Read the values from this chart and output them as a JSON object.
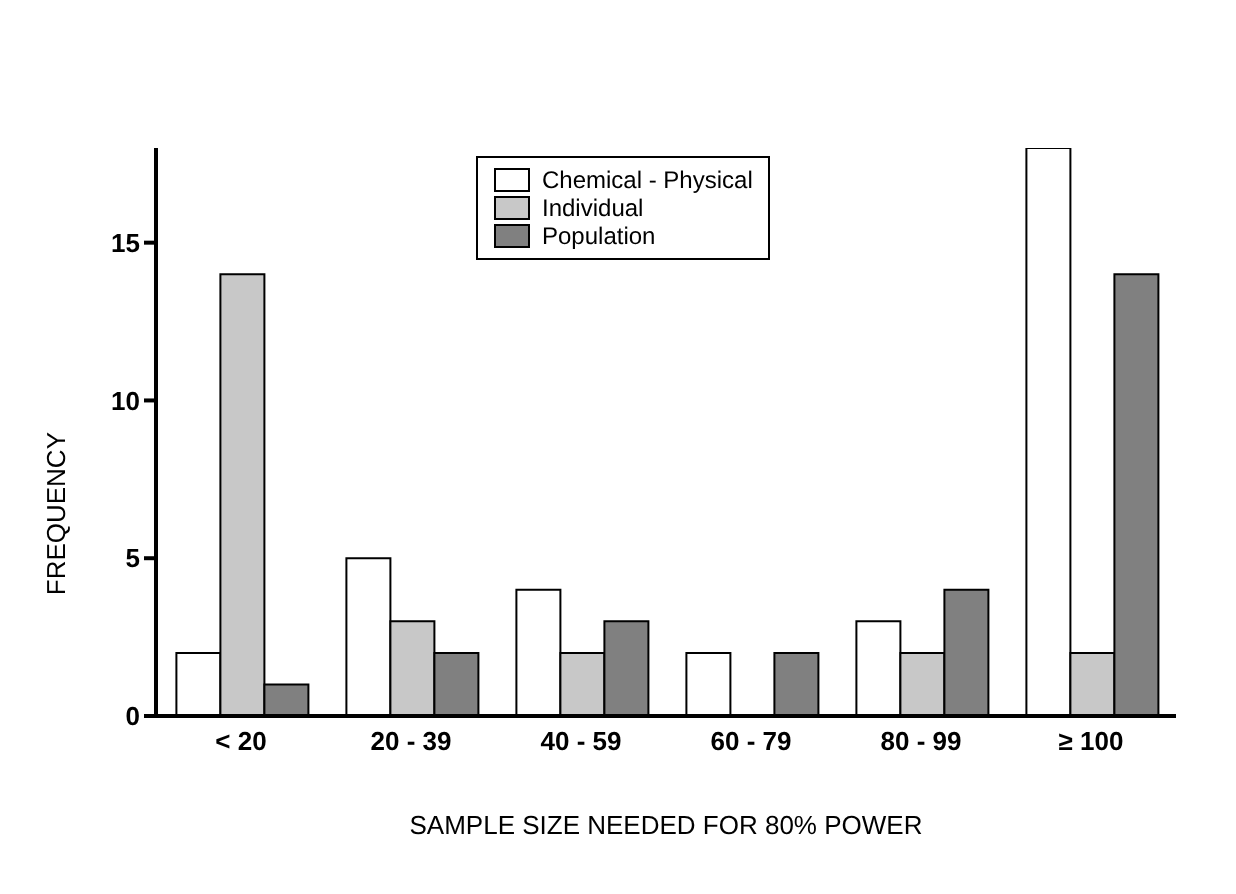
{
  "chart_data": {
    "type": "bar",
    "xlabel": "SAMPLE SIZE NEEDED FOR 80% POWER",
    "ylabel": "FREQUENCY",
    "categories": [
      "< 20",
      "20 - 39",
      "40 - 59",
      "60 - 79",
      "80 - 99",
      "≥ 100"
    ],
    "series": [
      {
        "name": "Chemical - Physical",
        "color": "#ffffff",
        "values": [
          2,
          5,
          4,
          2,
          3,
          18
        ]
      },
      {
        "name": "Individual",
        "color": "#c8c8c8",
        "values": [
          14,
          3,
          2,
          null,
          2,
          2
        ]
      },
      {
        "name": "Population",
        "color": "#808080",
        "values": [
          1,
          2,
          3,
          2,
          4,
          14
        ]
      }
    ],
    "ylim": [
      0,
      18
    ],
    "yticks": [
      0,
      5,
      10,
      15
    ],
    "grid": false,
    "legend": "top"
  }
}
